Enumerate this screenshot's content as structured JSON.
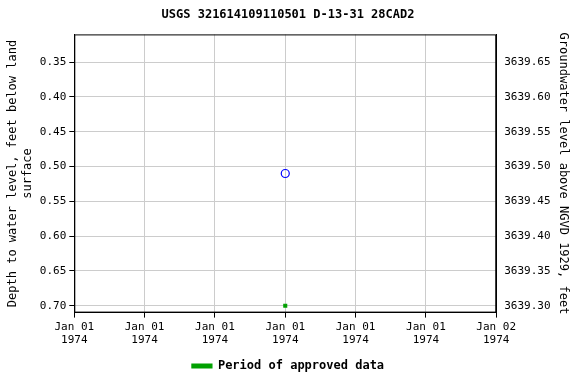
{
  "chart_data": {
    "type": "scatter",
    "title": "USGS 321614109110501 D-13-31 28CAD2",
    "y_label": "Depth to water level, feet below land\nsurface",
    "y2_label": "Groundwater level above NGVD 1929, feet",
    "x": [
      12
    ],
    "xlim": [
      0,
      24
    ],
    "xticks": [
      {
        "value": 0,
        "label": "Jan 01\n1974"
      },
      {
        "value": 4,
        "label": "Jan 01\n1974"
      },
      {
        "value": 8,
        "label": "Jan 01\n1974"
      },
      {
        "value": 12,
        "label": "Jan 01\n1974"
      },
      {
        "value": 16,
        "label": "Jan 01\n1974"
      },
      {
        "value": 20,
        "label": "Jan 01\n1974"
      },
      {
        "value": 24,
        "label": "Jan 02\n1974"
      }
    ],
    "ylim": [
      0.71,
      0.31
    ],
    "yticks": [
      {
        "value": 0.35,
        "label": "0.35"
      },
      {
        "value": 0.4,
        "label": "0.40"
      },
      {
        "value": 0.45,
        "label": "0.45"
      },
      {
        "value": 0.5,
        "label": "0.50"
      },
      {
        "value": 0.55,
        "label": "0.55"
      },
      {
        "value": 0.6,
        "label": "0.60"
      },
      {
        "value": 0.65,
        "label": "0.65"
      },
      {
        "value": 0.7,
        "label": "0.70"
      }
    ],
    "y2lim": [
      3639.29,
      3639.69
    ],
    "y2ticks": [
      {
        "value": 3639.3,
        "label": "3639.30"
      },
      {
        "value": 3639.35,
        "label": "3639.35"
      },
      {
        "value": 3639.4,
        "label": "3639.40"
      },
      {
        "value": 3639.45,
        "label": "3639.45"
      },
      {
        "value": 3639.5,
        "label": "3639.50"
      },
      {
        "value": 3639.55,
        "label": "3639.55"
      },
      {
        "value": 3639.6,
        "label": "3639.60"
      },
      {
        "value": 3639.65,
        "label": "3639.65"
      }
    ],
    "series": [
      {
        "color": "#0000ff",
        "marker": "circle",
        "values": [
          0.51
        ]
      },
      {
        "name": "Period of approved data",
        "color": "#00a000",
        "marker": "square",
        "values": [
          0.7
        ]
      }
    ],
    "grid": true,
    "legend": "bottom"
  }
}
